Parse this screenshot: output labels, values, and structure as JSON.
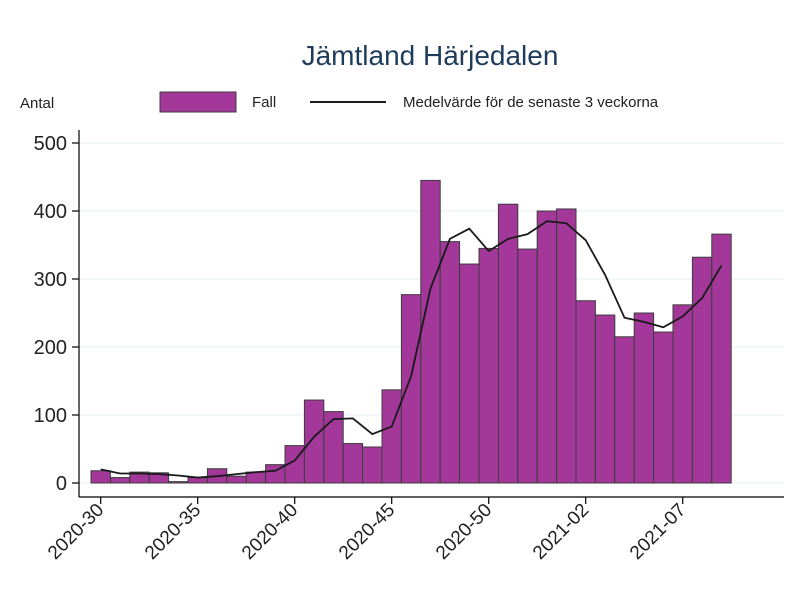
{
  "chart_data": {
    "type": "bar",
    "title": "Jämtland Härjedalen",
    "ylabel": "Antal",
    "ylim": [
      0,
      500
    ],
    "yticks": [
      0,
      100,
      200,
      300,
      400,
      500
    ],
    "xtick_labels": [
      "2020-30",
      "2020-35",
      "2020-40",
      "2020-45",
      "2020-50",
      "2021-02",
      "2021-07"
    ],
    "categories": [
      "2020-30",
      "2020-31",
      "2020-32",
      "2020-33",
      "2020-34",
      "2020-35",
      "2020-36",
      "2020-37",
      "2020-38",
      "2020-39",
      "2020-40",
      "2020-41",
      "2020-42",
      "2020-43",
      "2020-44",
      "2020-45",
      "2020-46",
      "2020-47",
      "2020-48",
      "2020-49",
      "2020-50",
      "2020-51",
      "2020-52",
      "2020-53",
      "2021-01",
      "2021-02",
      "2021-03",
      "2021-04",
      "2021-05",
      "2021-06",
      "2021-07",
      "2021-08",
      "2021-09"
    ],
    "grid": true,
    "legend_position": "top",
    "series": [
      {
        "name": "Fall",
        "kind": "bar",
        "color": "#a3379a",
        "values": [
          18,
          8,
          16,
          15,
          2,
          8,
          21,
          10,
          16,
          27,
          55,
          122,
          105,
          58,
          53,
          137,
          277,
          445,
          355,
          322,
          345,
          410,
          344,
          400,
          403,
          268,
          247,
          215,
          250,
          222,
          262,
          332,
          366
        ]
      },
      {
        "name": "Medelvärde för de senaste 3 veckorna",
        "kind": "line",
        "color": "#1a1a1a",
        "values": [
          20,
          14,
          14,
          13,
          11,
          8,
          10,
          13,
          16,
          18,
          33,
          68,
          94,
          95,
          72,
          83,
          157,
          286,
          359,
          374,
          341,
          359,
          366,
          385,
          382,
          357,
          306,
          243,
          237,
          229,
          245,
          272,
          320
        ]
      }
    ]
  }
}
